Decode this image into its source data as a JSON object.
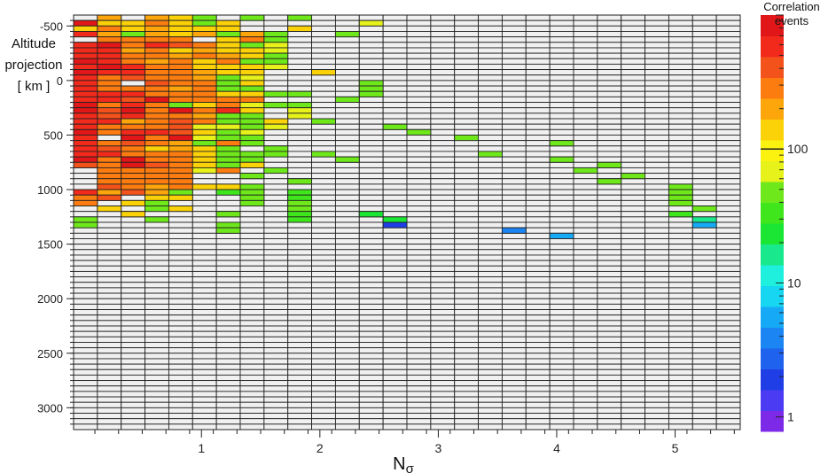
{
  "chart_data": {
    "type": "heatmap",
    "ylabel_lines": [
      "Altitude",
      "projection",
      "[ km ]"
    ],
    "xlabel_main": "N",
    "xlabel_sub": "σ",
    "x_ticks": [
      "1",
      "2",
      "3",
      "4",
      "5"
    ],
    "y_ticks": [
      "-500",
      "0",
      "500",
      "1000",
      "1500",
      "2000",
      "2500",
      "3000"
    ],
    "x_range": [
      -0.08,
      5.55
    ],
    "y_range": [
      -600,
      3200
    ],
    "x_bin": 0.2,
    "y_bin": 50,
    "colorbar": {
      "title_lines": [
        "Correlation",
        "events"
      ],
      "scale": "log",
      "range": [
        0.78,
        1000
      ],
      "tick_labels": [
        "1",
        "10",
        "100"
      ],
      "palette": [
        "#7c2ae8",
        "#4b3bf2",
        "#1f3ee6",
        "#1e62ee",
        "#1b86f3",
        "#16aaf6",
        "#16d6f2",
        "#1ef0dd",
        "#1ae88c",
        "#1be634",
        "#3fe61b",
        "#6ee81a",
        "#e6f21a",
        "#fbf20f",
        "#fbd208",
        "#fca60c",
        "#fc7c10",
        "#f4521b",
        "#f22a1c",
        "#e01618"
      ],
      "marker": 100
    },
    "legend": "right",
    "grid": true,
    "values_note": "cells give column index in 0.2-wide Nσ bins and row index in 50 km altitude bins starting at -600 km; value = correlation events",
    "cells": [
      [
        1,
        0,
        200
      ],
      [
        3,
        0,
        200
      ],
      [
        4,
        0,
        150
      ],
      [
        5,
        0,
        50
      ],
      [
        7,
        0,
        50
      ],
      [
        9,
        0,
        50
      ],
      [
        0,
        1,
        700
      ],
      [
        1,
        1,
        150
      ],
      [
        2,
        1,
        150
      ],
      [
        3,
        1,
        300
      ],
      [
        4,
        1,
        150
      ],
      [
        5,
        1,
        50
      ],
      [
        6,
        1,
        120
      ],
      [
        12,
        1,
        60
      ],
      [
        0,
        2,
        150
      ],
      [
        1,
        2,
        300
      ],
      [
        2,
        2,
        150
      ],
      [
        3,
        2,
        200
      ],
      [
        4,
        2,
        150
      ],
      [
        5,
        2,
        150
      ],
      [
        6,
        2,
        150
      ],
      [
        9,
        2,
        150
      ],
      [
        0,
        3,
        600
      ],
      [
        1,
        3,
        200
      ],
      [
        2,
        3,
        50
      ],
      [
        3,
        3,
        200
      ],
      [
        4,
        3,
        150
      ],
      [
        5,
        3,
        200
      ],
      [
        6,
        3,
        50
      ],
      [
        7,
        3,
        200
      ],
      [
        8,
        3,
        50
      ],
      [
        11,
        3,
        50
      ],
      [
        1,
        4,
        250
      ],
      [
        2,
        4,
        300
      ],
      [
        3,
        4,
        300
      ],
      [
        4,
        4,
        300
      ],
      [
        6,
        4,
        150
      ],
      [
        7,
        4,
        250
      ],
      [
        8,
        4,
        50
      ],
      [
        0,
        5,
        600
      ],
      [
        1,
        5,
        700
      ],
      [
        2,
        5,
        300
      ],
      [
        3,
        5,
        500
      ],
      [
        4,
        5,
        400
      ],
      [
        5,
        5,
        250
      ],
      [
        6,
        5,
        150
      ],
      [
        7,
        5,
        50
      ],
      [
        8,
        5,
        60
      ],
      [
        0,
        6,
        600
      ],
      [
        1,
        6,
        500
      ],
      [
        2,
        6,
        200
      ],
      [
        3,
        6,
        250
      ],
      [
        4,
        6,
        150
      ],
      [
        5,
        6,
        200
      ],
      [
        6,
        6,
        150
      ],
      [
        7,
        6,
        120
      ],
      [
        8,
        6,
        60
      ],
      [
        0,
        7,
        600
      ],
      [
        1,
        7,
        500
      ],
      [
        2,
        7,
        300
      ],
      [
        3,
        7,
        300
      ],
      [
        4,
        7,
        200
      ],
      [
        5,
        7,
        300
      ],
      [
        6,
        7,
        200
      ],
      [
        7,
        7,
        150
      ],
      [
        8,
        7,
        50
      ],
      [
        0,
        8,
        700
      ],
      [
        1,
        8,
        500
      ],
      [
        2,
        8,
        300
      ],
      [
        3,
        8,
        200
      ],
      [
        4,
        8,
        300
      ],
      [
        5,
        8,
        150
      ],
      [
        6,
        8,
        300
      ],
      [
        7,
        8,
        50
      ],
      [
        8,
        8,
        50
      ],
      [
        0,
        9,
        600
      ],
      [
        1,
        9,
        700
      ],
      [
        2,
        9,
        500
      ],
      [
        3,
        9,
        300
      ],
      [
        4,
        9,
        300
      ],
      [
        5,
        9,
        150
      ],
      [
        6,
        9,
        130
      ],
      [
        7,
        9,
        150
      ],
      [
        8,
        9,
        60
      ],
      [
        0,
        10,
        700
      ],
      [
        1,
        10,
        600
      ],
      [
        2,
        10,
        600
      ],
      [
        3,
        10,
        300
      ],
      [
        4,
        10,
        250
      ],
      [
        5,
        10,
        200
      ],
      [
        6,
        10,
        150
      ],
      [
        7,
        10,
        120
      ],
      [
        10,
        10,
        150
      ],
      [
        0,
        11,
        600
      ],
      [
        1,
        11,
        300
      ],
      [
        2,
        11,
        400
      ],
      [
        3,
        11,
        300
      ],
      [
        4,
        11,
        300
      ],
      [
        5,
        11,
        200
      ],
      [
        6,
        11,
        50
      ],
      [
        7,
        11,
        60
      ],
      [
        0,
        12,
        600
      ],
      [
        1,
        12,
        300
      ],
      [
        3,
        12,
        400
      ],
      [
        4,
        12,
        250
      ],
      [
        5,
        12,
        300
      ],
      [
        6,
        12,
        50
      ],
      [
        7,
        12,
        130
      ],
      [
        12,
        12,
        50
      ],
      [
        0,
        13,
        600
      ],
      [
        1,
        13,
        300
      ],
      [
        2,
        13,
        300
      ],
      [
        3,
        13,
        300
      ],
      [
        4,
        13,
        200
      ],
      [
        5,
        13,
        300
      ],
      [
        6,
        13,
        50
      ],
      [
        7,
        13,
        50
      ],
      [
        12,
        13,
        50
      ],
      [
        0,
        14,
        600
      ],
      [
        1,
        14,
        500
      ],
      [
        2,
        14,
        500
      ],
      [
        3,
        14,
        300
      ],
      [
        4,
        14,
        250
      ],
      [
        5,
        14,
        250
      ],
      [
        6,
        14,
        150
      ],
      [
        7,
        14,
        150
      ],
      [
        8,
        14,
        50
      ],
      [
        9,
        14,
        50
      ],
      [
        12,
        14,
        50
      ],
      [
        0,
        15,
        500
      ],
      [
        1,
        15,
        500
      ],
      [
        2,
        15,
        400
      ],
      [
        3,
        15,
        700
      ],
      [
        4,
        15,
        300
      ],
      [
        5,
        15,
        300
      ],
      [
        6,
        15,
        300
      ],
      [
        7,
        15,
        300
      ],
      [
        11,
        15,
        50
      ],
      [
        0,
        16,
        700
      ],
      [
        1,
        16,
        300
      ],
      [
        2,
        16,
        600
      ],
      [
        3,
        16,
        250
      ],
      [
        4,
        16,
        50
      ],
      [
        5,
        16,
        150
      ],
      [
        6,
        16,
        300
      ],
      [
        7,
        16,
        60
      ],
      [
        8,
        16,
        50
      ],
      [
        9,
        16,
        50
      ],
      [
        0,
        17,
        700
      ],
      [
        1,
        17,
        400
      ],
      [
        2,
        17,
        700
      ],
      [
        3,
        17,
        300
      ],
      [
        4,
        17,
        700
      ],
      [
        5,
        17,
        300
      ],
      [
        6,
        17,
        600
      ],
      [
        7,
        17,
        150
      ],
      [
        9,
        17,
        60
      ],
      [
        0,
        18,
        600
      ],
      [
        1,
        18,
        400
      ],
      [
        2,
        18,
        600
      ],
      [
        3,
        18,
        300
      ],
      [
        4,
        18,
        300
      ],
      [
        5,
        18,
        200
      ],
      [
        6,
        18,
        50
      ],
      [
        7,
        18,
        50
      ],
      [
        9,
        18,
        60
      ],
      [
        0,
        19,
        600
      ],
      [
        1,
        19,
        600
      ],
      [
        2,
        19,
        200
      ],
      [
        3,
        19,
        300
      ],
      [
        4,
        19,
        400
      ],
      [
        5,
        19,
        300
      ],
      [
        6,
        19,
        50
      ],
      [
        7,
        19,
        50
      ],
      [
        8,
        19,
        150
      ],
      [
        10,
        19,
        50
      ],
      [
        0,
        20,
        600
      ],
      [
        1,
        20,
        300
      ],
      [
        2,
        20,
        300
      ],
      [
        3,
        20,
        300
      ],
      [
        4,
        20,
        350
      ],
      [
        5,
        20,
        60
      ],
      [
        6,
        20,
        60
      ],
      [
        7,
        20,
        50
      ],
      [
        8,
        20,
        60
      ],
      [
        13,
        20,
        50
      ],
      [
        0,
        21,
        700
      ],
      [
        1,
        21,
        300
      ],
      [
        2,
        21,
        600
      ],
      [
        3,
        21,
        600
      ],
      [
        4,
        21,
        400
      ],
      [
        5,
        21,
        150
      ],
      [
        6,
        21,
        50
      ],
      [
        7,
        21,
        60
      ],
      [
        14,
        21,
        50
      ],
      [
        0,
        22,
        600
      ],
      [
        2,
        22,
        700
      ],
      [
        3,
        22,
        300
      ],
      [
        4,
        22,
        700
      ],
      [
        5,
        22,
        60
      ],
      [
        6,
        22,
        50
      ],
      [
        7,
        22,
        50
      ],
      [
        16,
        22,
        50
      ],
      [
        0,
        23,
        500
      ],
      [
        1,
        23,
        300
      ],
      [
        2,
        23,
        400
      ],
      [
        3,
        23,
        300
      ],
      [
        4,
        23,
        200
      ],
      [
        5,
        23,
        50
      ],
      [
        6,
        23,
        300
      ],
      [
        7,
        23,
        50
      ],
      [
        20,
        23,
        50
      ],
      [
        0,
        24,
        600
      ],
      [
        1,
        24,
        400
      ],
      [
        2,
        24,
        300
      ],
      [
        3,
        24,
        150
      ],
      [
        4,
        24,
        200
      ],
      [
        5,
        24,
        150
      ],
      [
        6,
        24,
        50
      ],
      [
        8,
        24,
        50
      ],
      [
        0,
        25,
        600
      ],
      [
        1,
        25,
        500
      ],
      [
        2,
        25,
        300
      ],
      [
        3,
        25,
        300
      ],
      [
        4,
        25,
        300
      ],
      [
        5,
        25,
        150
      ],
      [
        6,
        25,
        50
      ],
      [
        7,
        25,
        50
      ],
      [
        8,
        25,
        50
      ],
      [
        10,
        25,
        50
      ],
      [
        17,
        25,
        50
      ],
      [
        0,
        26,
        700
      ],
      [
        1,
        26,
        250
      ],
      [
        2,
        26,
        700
      ],
      [
        3,
        26,
        300
      ],
      [
        4,
        26,
        300
      ],
      [
        5,
        26,
        150
      ],
      [
        6,
        26,
        50
      ],
      [
        7,
        26,
        50
      ],
      [
        11,
        26,
        50
      ],
      [
        20,
        26,
        50
      ],
      [
        0,
        27,
        400
      ],
      [
        1,
        27,
        300
      ],
      [
        2,
        27,
        700
      ],
      [
        3,
        27,
        400
      ],
      [
        4,
        27,
        250
      ],
      [
        5,
        27,
        150
      ],
      [
        6,
        27,
        50
      ],
      [
        7,
        27,
        130
      ],
      [
        22,
        27,
        50
      ],
      [
        1,
        28,
        300
      ],
      [
        2,
        28,
        300
      ],
      [
        3,
        28,
        300
      ],
      [
        4,
        28,
        300
      ],
      [
        5,
        28,
        60
      ],
      [
        6,
        28,
        300
      ],
      [
        8,
        28,
        50
      ],
      [
        21,
        28,
        50
      ],
      [
        1,
        29,
        300
      ],
      [
        2,
        29,
        300
      ],
      [
        3,
        29,
        300
      ],
      [
        4,
        29,
        300
      ],
      [
        7,
        29,
        50
      ],
      [
        23,
        29,
        50
      ],
      [
        1,
        30,
        300
      ],
      [
        2,
        30,
        300
      ],
      [
        3,
        30,
        300
      ],
      [
        4,
        30,
        300
      ],
      [
        9,
        30,
        50
      ],
      [
        22,
        30,
        50
      ],
      [
        1,
        31,
        400
      ],
      [
        2,
        31,
        300
      ],
      [
        3,
        31,
        200
      ],
      [
        4,
        31,
        300
      ],
      [
        5,
        31,
        120
      ],
      [
        6,
        31,
        150
      ],
      [
        7,
        31,
        50
      ],
      [
        25,
        31,
        50
      ],
      [
        0,
        32,
        600
      ],
      [
        1,
        32,
        200
      ],
      [
        2,
        32,
        400
      ],
      [
        3,
        32,
        200
      ],
      [
        4,
        32,
        50
      ],
      [
        6,
        32,
        30
      ],
      [
        7,
        32,
        50
      ],
      [
        9,
        32,
        30
      ],
      [
        25,
        32,
        50
      ],
      [
        0,
        33,
        300
      ],
      [
        1,
        33,
        400
      ],
      [
        3,
        33,
        150
      ],
      [
        4,
        33,
        150
      ],
      [
        7,
        33,
        50
      ],
      [
        9,
        33,
        30
      ],
      [
        25,
        33,
        50
      ],
      [
        0,
        34,
        300
      ],
      [
        2,
        34,
        150
      ],
      [
        3,
        34,
        50
      ],
      [
        7,
        34,
        50
      ],
      [
        9,
        34,
        50
      ],
      [
        25,
        34,
        50
      ],
      [
        1,
        35,
        150
      ],
      [
        3,
        35,
        50
      ],
      [
        4,
        35,
        150
      ],
      [
        9,
        35,
        50
      ],
      [
        26,
        35,
        50
      ],
      [
        2,
        36,
        150
      ],
      [
        6,
        36,
        50
      ],
      [
        9,
        36,
        30
      ],
      [
        12,
        36,
        20
      ],
      [
        25,
        36,
        30
      ],
      [
        0,
        37,
        50
      ],
      [
        3,
        37,
        50
      ],
      [
        9,
        37,
        30
      ],
      [
        13,
        37,
        20
      ],
      [
        26,
        37,
        15
      ],
      [
        0,
        38,
        50
      ],
      [
        6,
        38,
        50
      ],
      [
        13,
        38,
        2
      ],
      [
        26,
        38,
        6
      ],
      [
        6,
        39,
        50
      ],
      [
        18,
        39,
        4
      ],
      [
        20,
        40,
        6
      ]
    ]
  }
}
